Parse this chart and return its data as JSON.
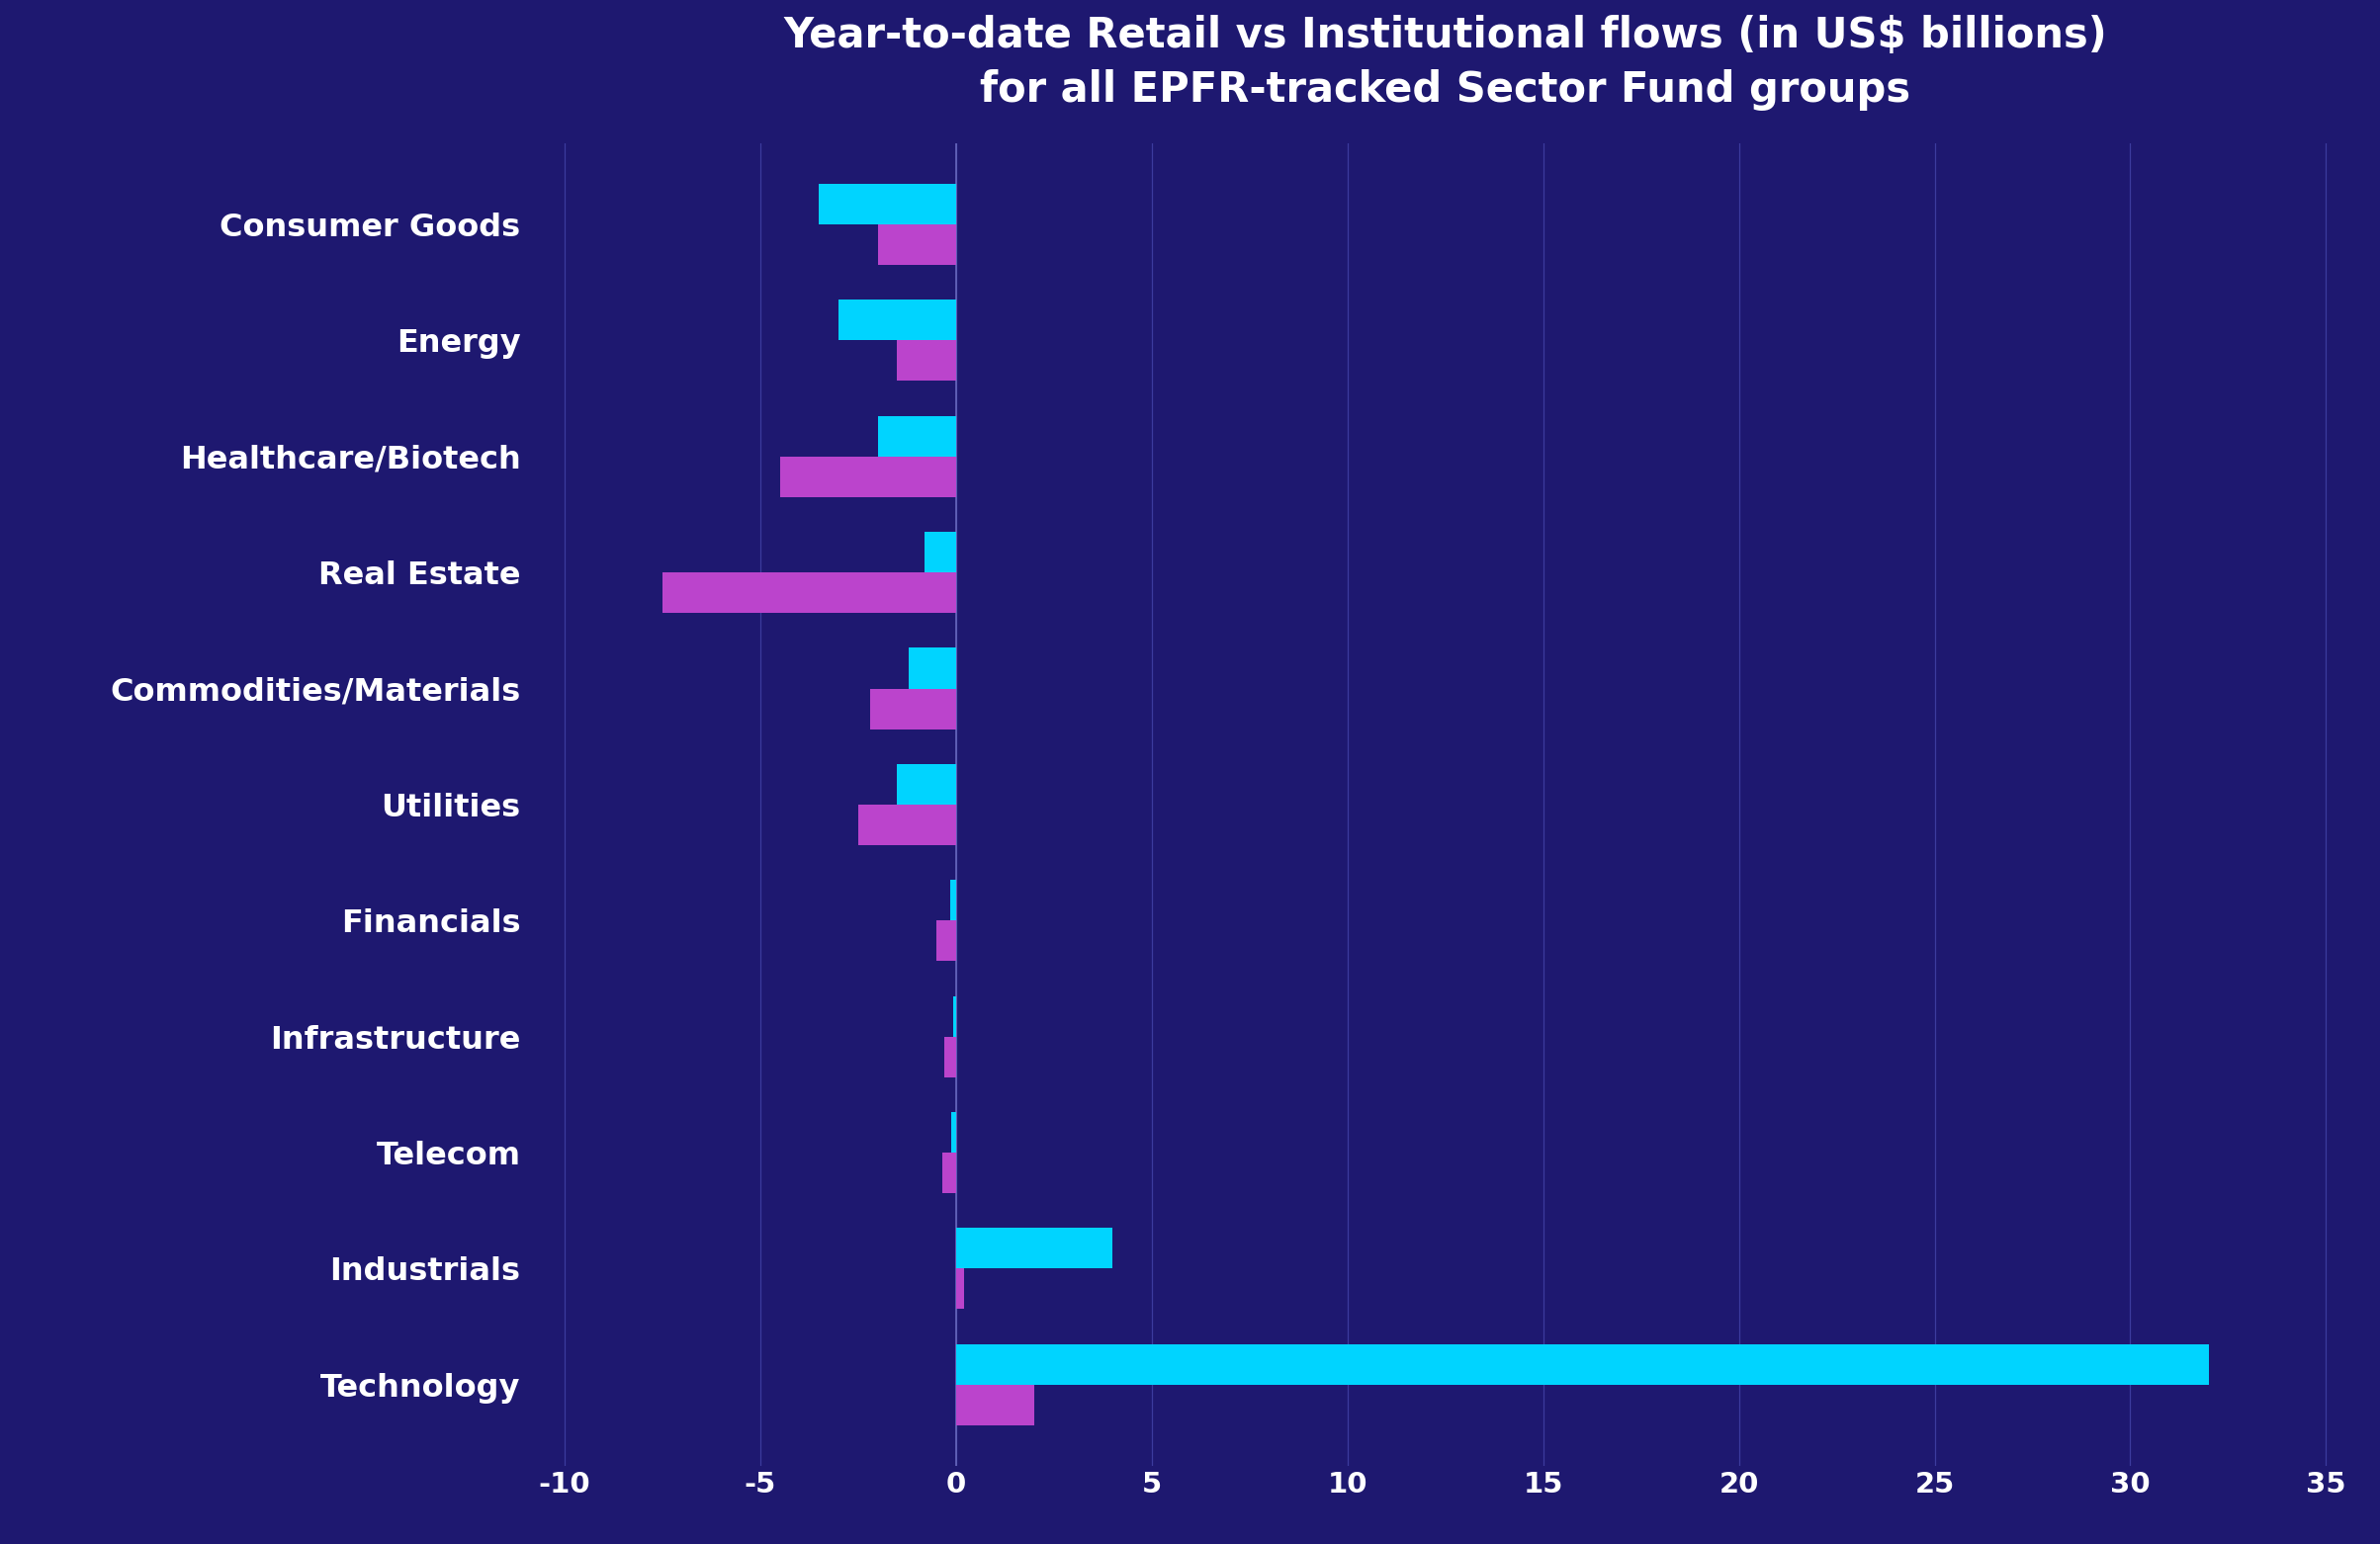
{
  "title": "Year-to-date Retail vs Institutional flows (in US$ billions)\nfor all EPFR-tracked Sector Fund groups",
  "categories": [
    "Technology",
    "Industrials",
    "Telecom",
    "Infrastructure",
    "Financials",
    "Utilities",
    "Commodities/Materials",
    "Real Estate",
    "Healthcare/Biotech",
    "Energy",
    "Consumer Goods"
  ],
  "retail": [
    32.0,
    4.0,
    -0.12,
    -0.08,
    -0.15,
    -1.5,
    -1.2,
    -0.8,
    -2.0,
    -3.0,
    -3.5
  ],
  "institutional": [
    2.0,
    0.2,
    -0.35,
    -0.3,
    -0.5,
    -2.5,
    -2.2,
    -7.5,
    -4.5,
    -1.5,
    -2.0
  ],
  "retail_color": "#00D4FF",
  "institutional_color": "#BB44CC",
  "background_color": "#1E1870",
  "grid_color": "#4444AA",
  "text_color": "#FFFFFF",
  "xlim": [
    -11,
    36
  ],
  "xticks": [
    -10,
    -5,
    0,
    5,
    10,
    15,
    20,
    25,
    30,
    35
  ],
  "bar_height": 0.35,
  "title_fontsize": 30,
  "label_fontsize": 23,
  "tick_fontsize": 21
}
